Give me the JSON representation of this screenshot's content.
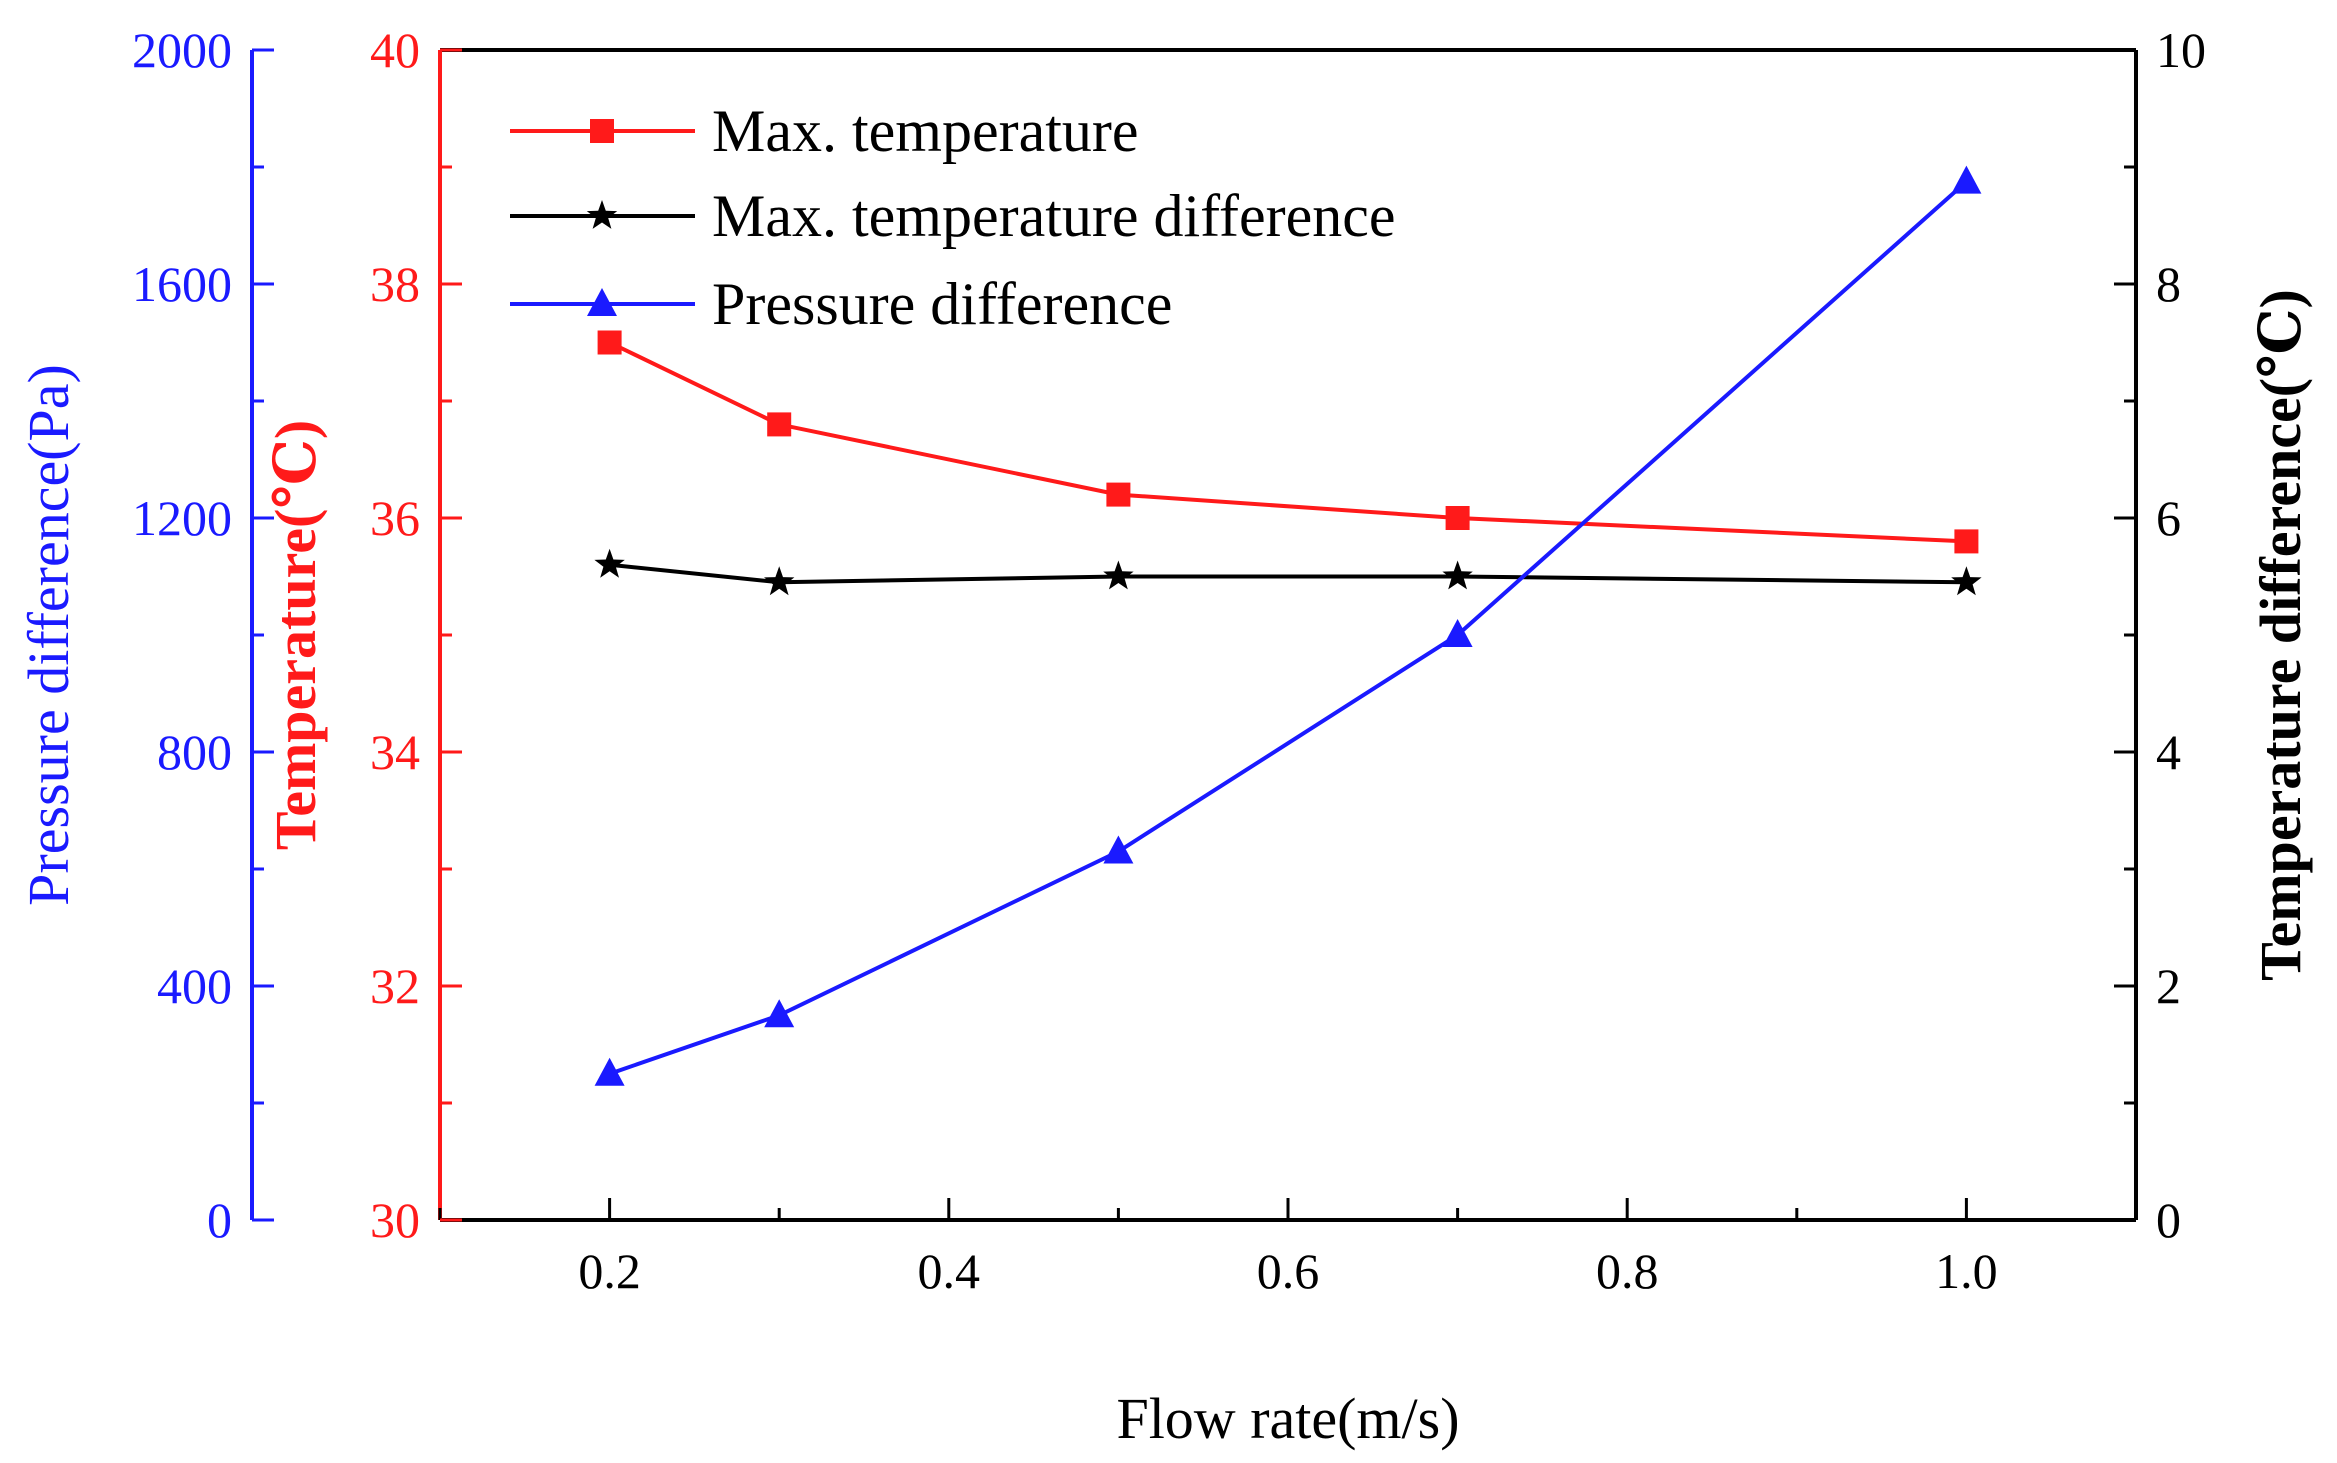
{
  "chart_data": {
    "type": "line",
    "xlabel": "Flow rate(m/s)",
    "xlim": [
      0.1,
      1.1
    ],
    "xticks": [
      "0.2",
      "0.4",
      "0.6",
      "0.8",
      "1.0"
    ],
    "axes": {
      "pressure": {
        "label": "Pressure difference(Pa)",
        "ylim": [
          0,
          2000
        ],
        "ticks": [
          "0",
          "400",
          "800",
          "1200",
          "1600",
          "2000"
        ],
        "color": "#1a1aff"
      },
      "temperature": {
        "label": "Temperature(℃)",
        "ylim": [
          30,
          40
        ],
        "ticks": [
          "30",
          "32",
          "34",
          "36",
          "38",
          "40"
        ],
        "color": "#ff1a1a"
      },
      "temp_diff": {
        "label": "Temperature difference(℃)",
        "ylim": [
          0,
          10
        ],
        "ticks": [
          "0",
          "2",
          "4",
          "6",
          "8",
          "10"
        ],
        "color": "#000000"
      }
    },
    "legend_position": "top-left",
    "grid": false,
    "series": [
      {
        "name": "Max. temperature",
        "axis": "temperature",
        "marker": "square",
        "color": "#ff1a1a",
        "x": [
          0.2,
          0.3,
          0.5,
          0.7,
          1.0
        ],
        "y": [
          37.5,
          36.8,
          36.2,
          36.0,
          35.8
        ]
      },
      {
        "name": "Max. temperature difference",
        "axis": "temp_diff",
        "marker": "star",
        "color": "#000000",
        "x": [
          0.2,
          0.3,
          0.5,
          0.7,
          1.0
        ],
        "y": [
          5.6,
          5.45,
          5.5,
          5.5,
          5.45
        ]
      },
      {
        "name": "Pressure difference",
        "axis": "pressure",
        "marker": "triangle",
        "color": "#1a1aff",
        "x": [
          0.2,
          0.3,
          0.5,
          0.7,
          1.0
        ],
        "y": [
          250,
          350,
          630,
          1000,
          1775
        ]
      }
    ]
  }
}
